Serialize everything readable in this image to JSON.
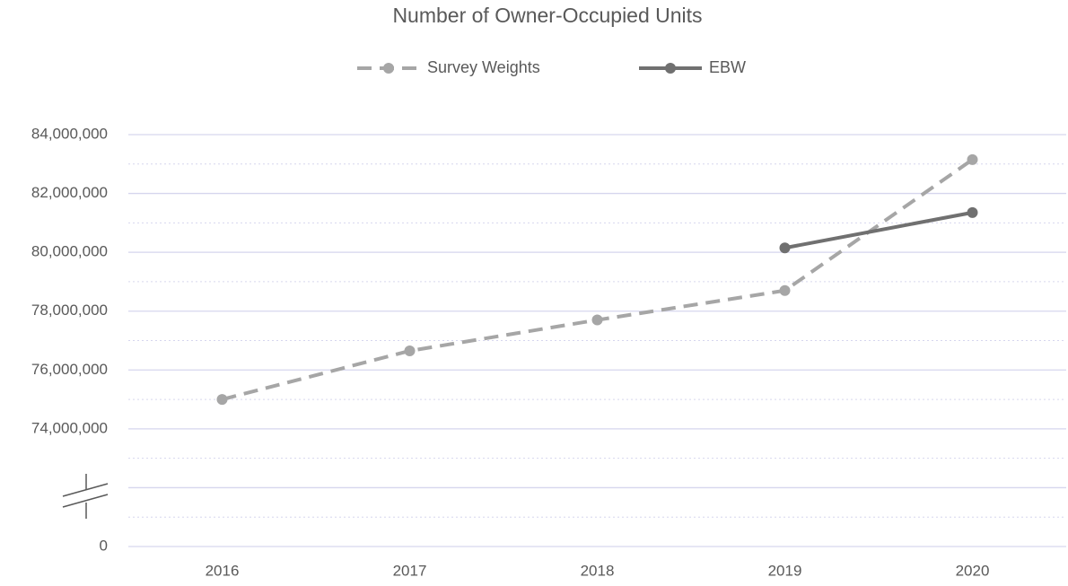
{
  "chart_data": {
    "type": "line",
    "title": "Number of Owner-Occupied Units",
    "categories": [
      "2016",
      "2017",
      "2018",
      "2019",
      "2020"
    ],
    "series": [
      {
        "name": "Survey Weights",
        "color": "#a6a6a6",
        "dashed": true,
        "values": [
          75000000,
          76650000,
          77700000,
          78700000,
          83150000
        ]
      },
      {
        "name": "EBW",
        "color": "#707070",
        "dashed": false,
        "values": [
          null,
          null,
          null,
          80150000,
          81350000
        ]
      }
    ],
    "ylim": [
      0,
      84000000
    ],
    "ybreak": [
      0,
      72000000
    ],
    "yticks": [
      {
        "value": 0,
        "label": "0"
      },
      {
        "value": 74000000,
        "label": "74,000,000"
      },
      {
        "value": 76000000,
        "label": "76,000,000"
      },
      {
        "value": 78000000,
        "label": "78,000,000"
      },
      {
        "value": 80000000,
        "label": "80,000,000"
      },
      {
        "value": 82000000,
        "label": "82,000,000"
      },
      {
        "value": 84000000,
        "label": "84,000,000"
      }
    ],
    "grid": true,
    "legend": "top"
  }
}
